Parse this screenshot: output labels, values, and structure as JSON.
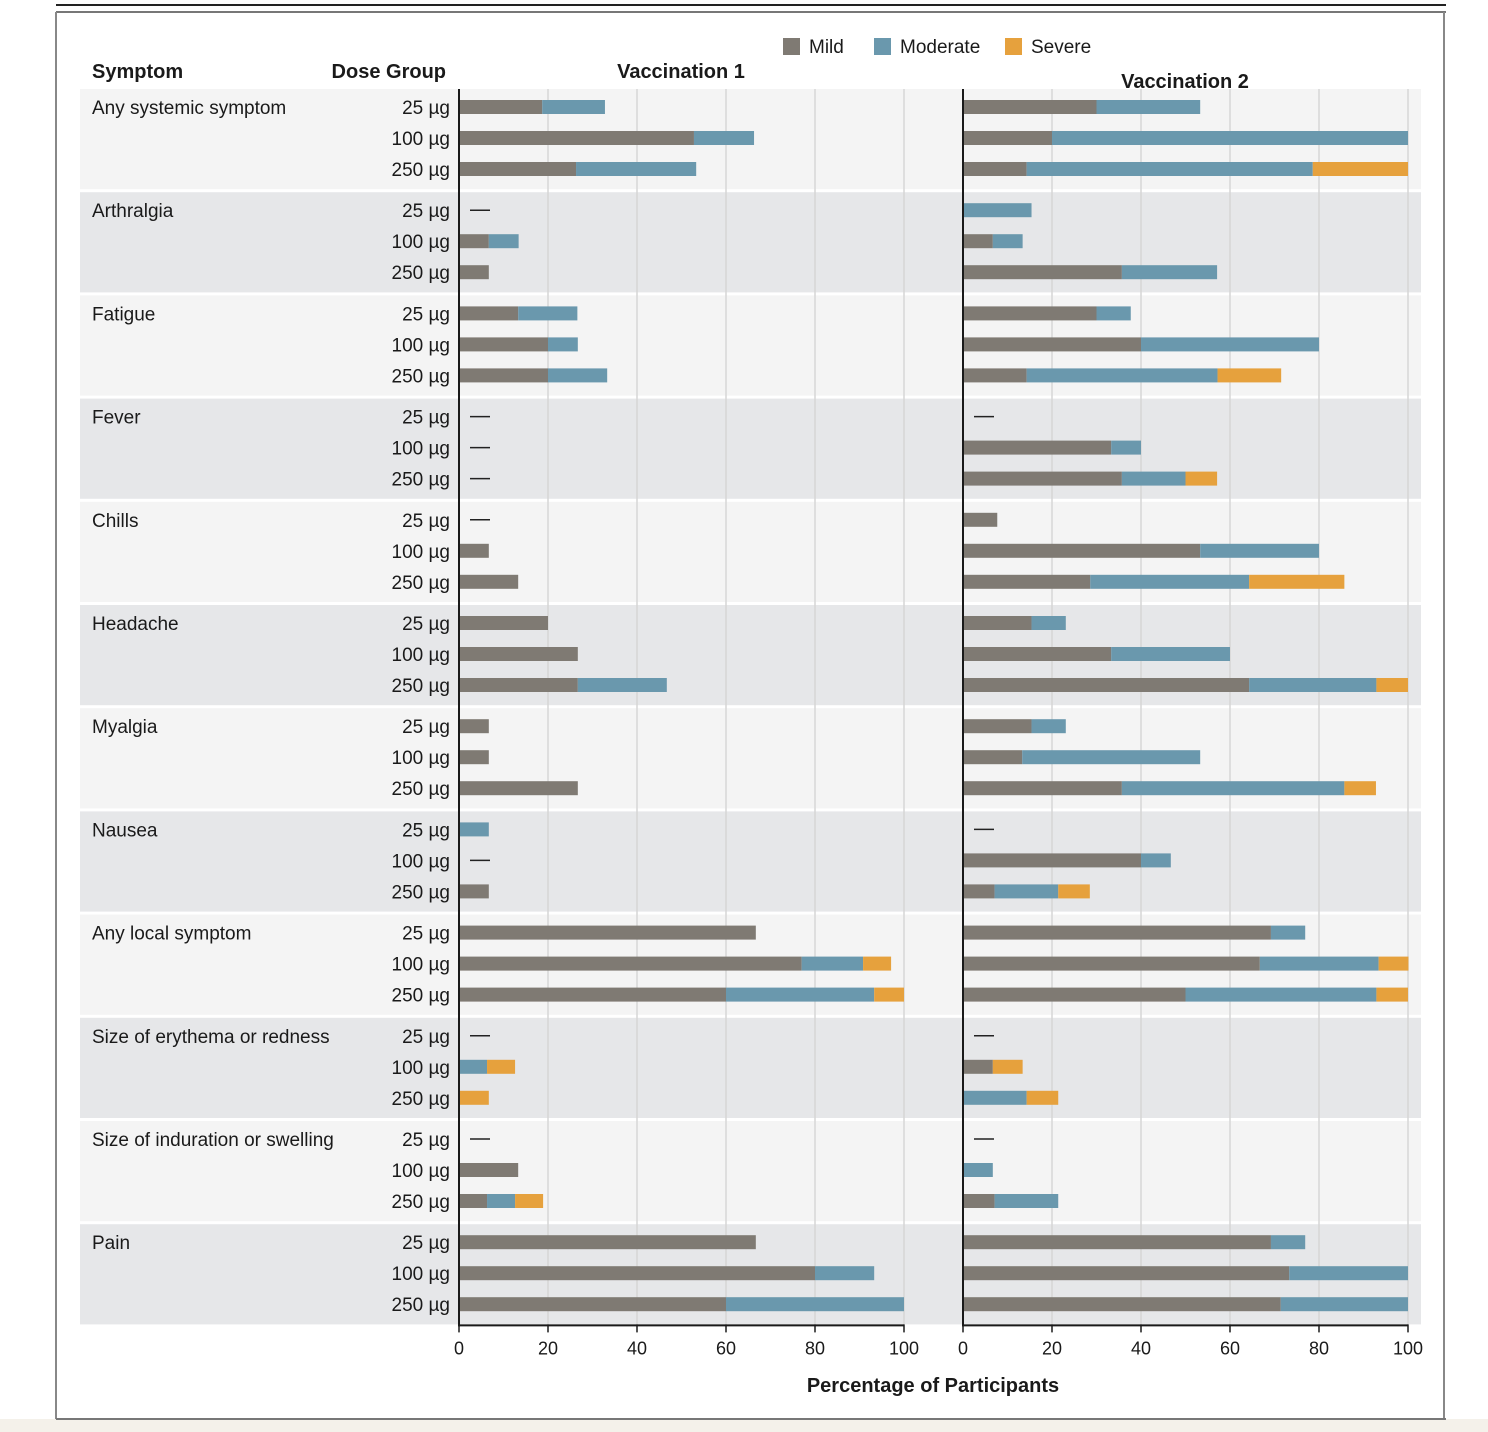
{
  "chart_data": {
    "type": "bar",
    "orientation": "horizontal",
    "stacked": true,
    "column_headers": {
      "symptom": "Symptom",
      "dose": "Dose Group"
    },
    "panels": [
      "Vaccination 1",
      "Vaccination 2"
    ],
    "xlabel": "Percentage of Participants",
    "xlim": [
      0,
      100
    ],
    "xticks": [
      0,
      20,
      40,
      60,
      80,
      100
    ],
    "grid": true,
    "legend_position": "top-right",
    "series": [
      {
        "name": "Mild",
        "color": "#7f7a73"
      },
      {
        "name": "Moderate",
        "color": "#6a98ad"
      },
      {
        "name": "Severe",
        "color": "#e6a13d"
      }
    ],
    "dose_groups": [
      "25 µg",
      "100 µg",
      "250 µg"
    ],
    "no_event_marker": "—",
    "symptoms": [
      {
        "name": "Any systemic symptom",
        "v1": [
          [
            18.7,
            14.1,
            0
          ],
          [
            52.8,
            13.5,
            0
          ],
          [
            26.3,
            27,
            0
          ]
        ],
        "v2": [
          [
            30,
            23.3,
            0
          ],
          [
            20,
            80,
            0
          ],
          [
            14.3,
            64.3,
            21.4
          ]
        ]
      },
      {
        "name": "Arthralgia",
        "v1": [
          null,
          [
            6.7,
            6.7,
            0
          ],
          [
            6.7,
            0,
            0
          ]
        ],
        "v2": [
          [
            0,
            15.4,
            0
          ],
          [
            6.7,
            6.7,
            0
          ],
          [
            35.7,
            21.4,
            0
          ]
        ]
      },
      {
        "name": "Fatigue",
        "v1": [
          [
            13.3,
            13.3,
            0
          ],
          [
            20,
            6.7,
            0
          ],
          [
            20,
            13.3,
            0
          ]
        ],
        "v2": [
          [
            30,
            7.7,
            0
          ],
          [
            40,
            40,
            0
          ],
          [
            14.3,
            42.9,
            14.3
          ]
        ]
      },
      {
        "name": "Fever",
        "v1": [
          null,
          null,
          null
        ],
        "v2": [
          null,
          [
            33.3,
            6.7,
            0
          ],
          [
            35.7,
            14.3,
            7.1
          ]
        ]
      },
      {
        "name": "Chills",
        "v1": [
          null,
          [
            6.7,
            0,
            0
          ],
          [
            13.3,
            0,
            0
          ]
        ],
        "v2": [
          [
            7.7,
            0,
            0
          ],
          [
            53.3,
            26.7,
            0
          ],
          [
            28.6,
            35.7,
            21.4
          ]
        ]
      },
      {
        "name": "Headache",
        "v1": [
          [
            20,
            0,
            0
          ],
          [
            26.7,
            0,
            0
          ],
          [
            26.7,
            20,
            0
          ]
        ],
        "v2": [
          [
            15.4,
            7.7,
            0
          ],
          [
            33.3,
            26.7,
            0
          ],
          [
            64.3,
            28.6,
            7.1
          ]
        ]
      },
      {
        "name": "Myalgia",
        "v1": [
          [
            6.7,
            0,
            0
          ],
          [
            6.7,
            0,
            0
          ],
          [
            26.7,
            0,
            0
          ]
        ],
        "v2": [
          [
            15.4,
            7.7,
            0
          ],
          [
            13.3,
            40,
            0
          ],
          [
            35.7,
            50,
            7.1
          ]
        ]
      },
      {
        "name": "Nausea",
        "v1": [
          [
            0,
            6.7,
            0
          ],
          null,
          [
            6.7,
            0,
            0
          ]
        ],
        "v2": [
          null,
          [
            40,
            6.7,
            0
          ],
          [
            7.1,
            14.3,
            7.1
          ]
        ]
      },
      {
        "name": "Any local symptom",
        "v1": [
          [
            66.7,
            0,
            0
          ],
          [
            77,
            13.8,
            6.3
          ],
          [
            60,
            33.3,
            6.7
          ]
        ],
        "v2": [
          [
            69.2,
            7.7,
            0
          ],
          [
            66.7,
            26.7,
            6.7
          ],
          [
            50,
            42.9,
            7.1
          ]
        ]
      },
      {
        "name": "Size of erythema or redness",
        "v1": [
          null,
          [
            0,
            6.3,
            6.3
          ],
          [
            0,
            0,
            6.7
          ]
        ],
        "v2": [
          null,
          [
            6.7,
            0,
            6.7
          ],
          [
            0,
            14.3,
            7.1
          ]
        ]
      },
      {
        "name": "Size of induration or swelling",
        "v1": [
          null,
          [
            13.3,
            0,
            0
          ],
          [
            6.3,
            6.3,
            6.3
          ]
        ],
        "v2": [
          null,
          [
            0,
            6.7,
            0
          ],
          [
            7.1,
            14.3,
            0
          ]
        ]
      },
      {
        "name": "Pain",
        "v1": [
          [
            66.7,
            0,
            0
          ],
          [
            80,
            13.3,
            0
          ],
          [
            60,
            40,
            0
          ]
        ],
        "v2": [
          [
            69.2,
            7.7,
            0
          ],
          [
            73.3,
            26.7,
            0
          ],
          [
            71.4,
            28.6,
            0
          ]
        ]
      }
    ]
  }
}
